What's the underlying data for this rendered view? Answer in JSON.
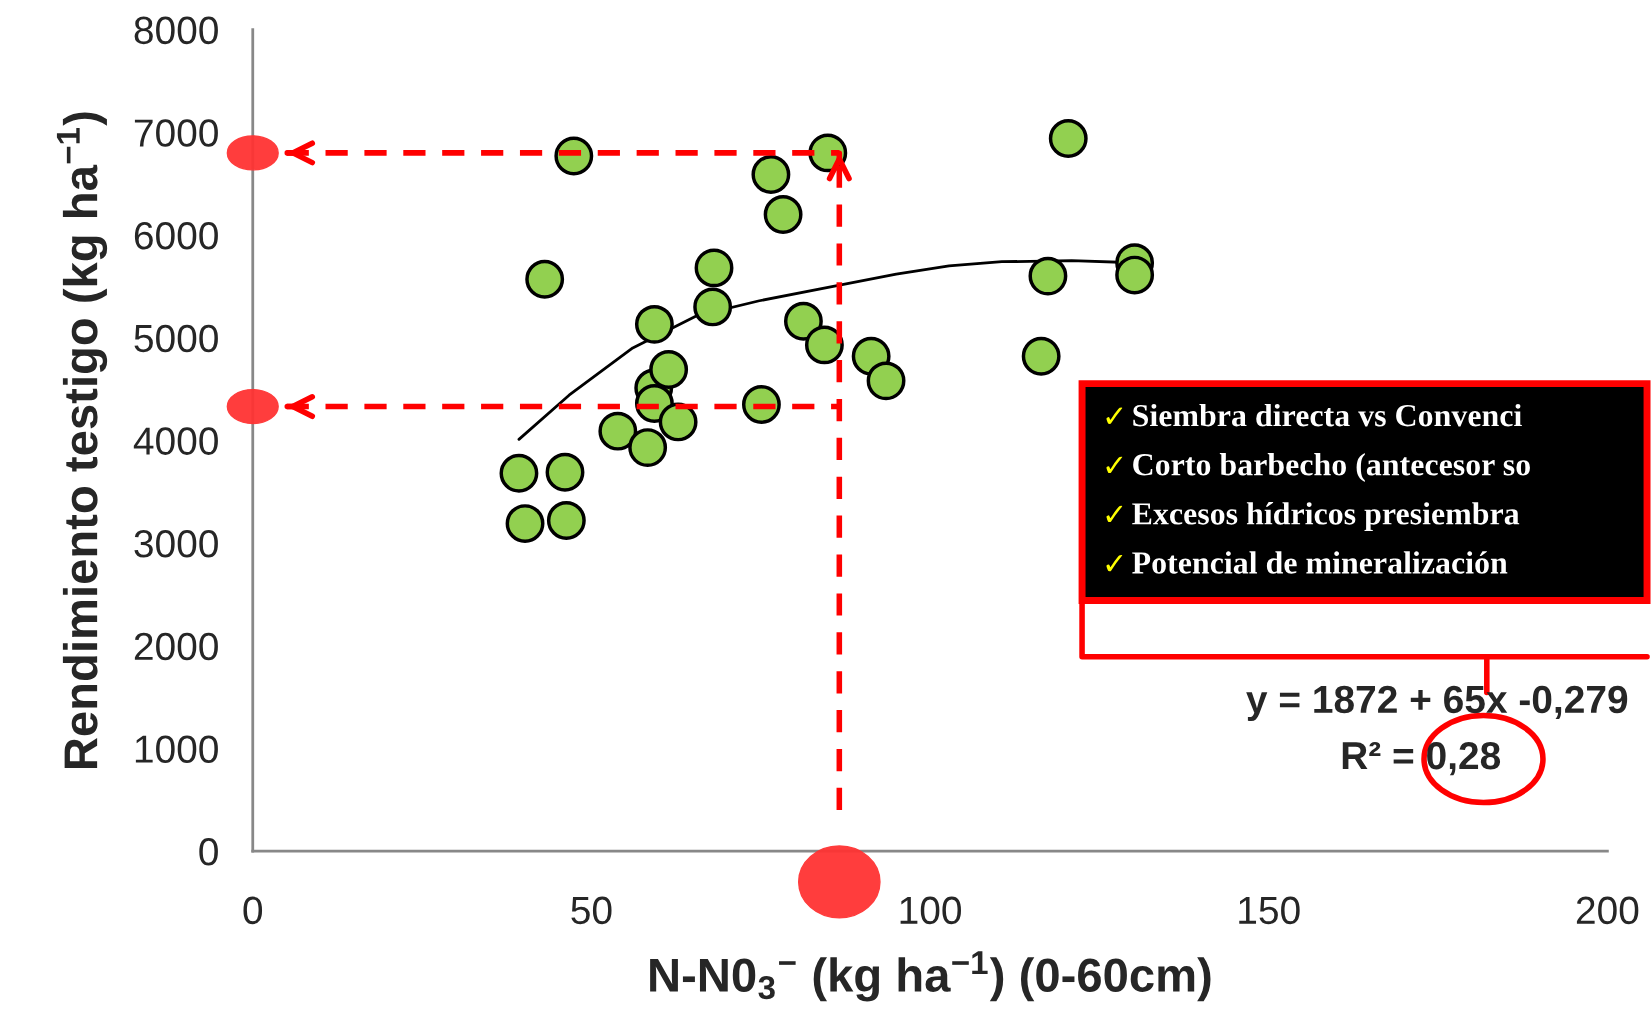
{
  "chart_data": {
    "type": "scatter",
    "xlabel": "N-N0$_{3}$$^{−}$ (kg ha$^{−1}$) (0-60cm)",
    "ylabel": "Rendimiento testigo (kg ha$^{−1}$)",
    "xlim": [
      0,
      200
    ],
    "xticks": [
      0,
      50,
      100,
      150,
      200
    ],
    "ylim": [
      0,
      8000
    ],
    "yticks": [
      0,
      1000,
      2000,
      3000,
      4000,
      5000,
      6000,
      7000,
      8000
    ],
    "grid": false,
    "series": [
      {
        "type": "scatter",
        "marker": "circle",
        "color": "#92d050",
        "x": [
          43.1,
          47.4,
          39.3,
          40.2,
          46.1,
          46.3,
          53.9,
          58.3,
          59.3,
          59.2,
          59.3,
          61.4,
          62.8,
          68.1,
          67.9,
          75.1,
          76.5,
          78.3,
          81.3,
          84.4,
          84.9,
          91.3,
          93.5,
          116.4,
          117.4,
          120.4,
          130.2,
          130.2
        ],
        "values": [
          5570,
          6770,
          3680,
          3190,
          3690,
          3220,
          4090,
          3930,
          5130,
          4510,
          4360,
          4690,
          4180,
          5680,
          5300,
          4350,
          6590,
          6200,
          5160,
          4930,
          6800,
          4820,
          4580,
          4820,
          5600,
          6940,
          5730,
          5610
        ]
      },
      {
        "type": "line",
        "marker": "none",
        "color": "#000000",
        "x": [
          39.3,
          46.7,
          56.1,
          65.4,
          74.8,
          85.7,
          95,
          102.8,
          110.6,
          120.9,
          130.2
        ],
        "values": [
          4010,
          4440,
          4900,
          5210,
          5360,
          5500,
          5620,
          5700,
          5740,
          5750,
          5730
        ]
      }
    ],
    "ref_lines": [
      {
        "axis": "x",
        "value": 86.6,
        "color": "#ff0000",
        "line_style": "dashed"
      },
      {
        "axis": "y",
        "value": 6800,
        "color": "#ff0000",
        "line_style": "dashed"
      },
      {
        "axis": "y",
        "value": 4330,
        "color": "#ff0000",
        "line_style": "dashed"
      }
    ],
    "annotations": [
      "✓Siembra directa vs Convenci",
      "✓Corto barbecho (antecesor so",
      "✓Excesos hídricos presiembra",
      "✓Potencial de mineralización",
      "y = 1872 + 65x -0,279",
      "R² = 0,28"
    ]
  }
}
